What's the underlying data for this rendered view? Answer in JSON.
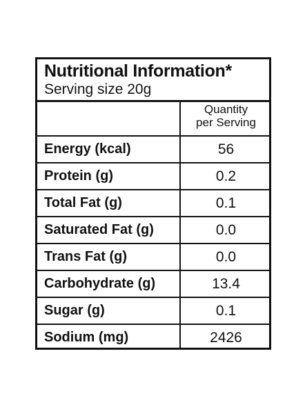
{
  "label": {
    "title": "Nutritional Information*",
    "serving_size": "Serving size 20g",
    "column_header_line1": "Quantity",
    "column_header_line2": "per Serving",
    "rows": [
      {
        "name": "Energy (kcal)",
        "value": "56"
      },
      {
        "name": "Protein (g)",
        "value": "0.2"
      },
      {
        "name": "Total Fat (g)",
        "value": "0.1"
      },
      {
        "name": "Saturated Fat (g)",
        "value": "0.0"
      },
      {
        "name": "Trans Fat (g)",
        "value": "0.0"
      },
      {
        "name": "Carbohydrate (g)",
        "value": "13.4"
      },
      {
        "name": "Sugar (g)",
        "value": "0.1"
      },
      {
        "name": "Sodium (mg)",
        "value": "2426"
      }
    ]
  }
}
